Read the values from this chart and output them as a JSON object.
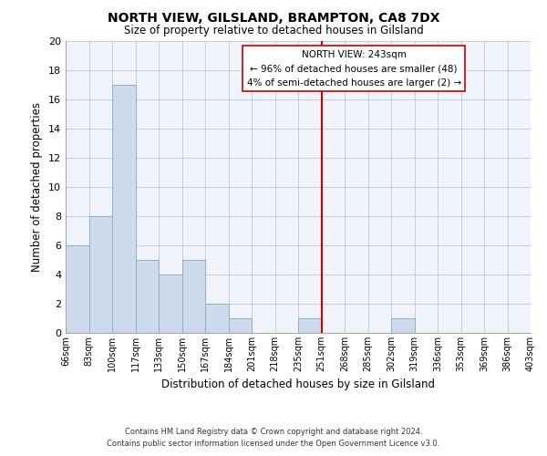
{
  "title": "NORTH VIEW, GILSLAND, BRAMPTON, CA8 7DX",
  "subtitle": "Size of property relative to detached houses in Gilsland",
  "xlabel": "Distribution of detached houses by size in Gilsland",
  "ylabel": "Number of detached properties",
  "footer_line1": "Contains HM Land Registry data © Crown copyright and database right 2024.",
  "footer_line2": "Contains public sector information licensed under the Open Government Licence v3.0.",
  "bin_labels": [
    "66sqm",
    "83sqm",
    "100sqm",
    "117sqm",
    "133sqm",
    "150sqm",
    "167sqm",
    "184sqm",
    "201sqm",
    "218sqm",
    "235sqm",
    "251sqm",
    "268sqm",
    "285sqm",
    "302sqm",
    "319sqm",
    "336sqm",
    "353sqm",
    "369sqm",
    "386sqm",
    "403sqm"
  ],
  "bar_values": [
    6,
    8,
    17,
    5,
    4,
    5,
    2,
    1,
    0,
    0,
    1,
    0,
    0,
    0,
    1,
    0,
    0,
    0,
    0,
    0
  ],
  "bar_color": "#ccdaeb",
  "bar_edge_color": "#8bafc8",
  "ylim": [
    0,
    20
  ],
  "yticks": [
    0,
    2,
    4,
    6,
    8,
    10,
    12,
    14,
    16,
    18,
    20
  ],
  "property_line_x": 11,
  "property_line_color": "#cc0000",
  "annotation_title": "NORTH VIEW: 243sqm",
  "annotation_line1": "← 96% of detached houses are smaller (48)",
  "annotation_line2": "4% of semi-detached houses are larger (2) →",
  "background_color": "#f0f4fa",
  "grid_color": "#b8c8d8"
}
